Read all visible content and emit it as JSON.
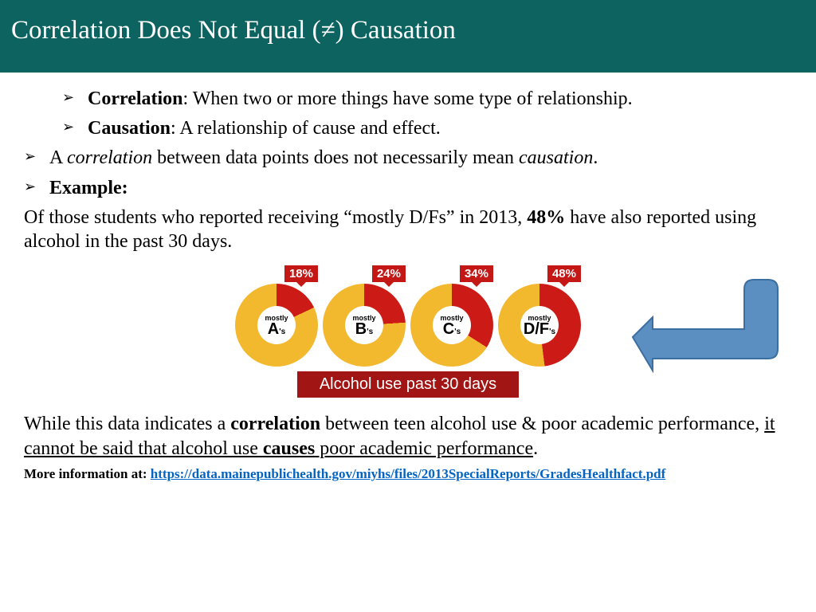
{
  "header": {
    "title": "Correlation Does Not Equal (≠) Causation"
  },
  "bullets": {
    "b1_term": "Correlation",
    "b1_rest": ": When two or more things have some type of relationship.",
    "b2_term": "Causation",
    "b2_rest": ": A relationship of cause and effect.",
    "b3_pre": "A ",
    "b3_it1": "correlation",
    "b3_mid": " between data points does not necessarily mean ",
    "b3_it2": "causation",
    "b3_end": ".",
    "b4": "Example:"
  },
  "body": {
    "p1_a": "Of those students who reported receiving “mostly D/Fs” in 2013, ",
    "p1_pct": "48%",
    "p1_b": " have also reported using alcohol in the past 30 days.",
    "p2_a": "While this data indicates a ",
    "p2_b1": "correlation",
    "p2_c": " between teen alcohol use & poor academic performance, ",
    "p2_u1": "it cannot be said that alcohol use ",
    "p2_u2": "causes",
    "p2_u3": " poor academic performance",
    "p2_end": "."
  },
  "chart": {
    "type": "donut-row",
    "donut_base_color": "#f2b82e",
    "donut_slice_color": "#cc1b17",
    "tag_bg": "#c41817",
    "caption_bg": "#a11515",
    "caption": "Alcohol use past 30 days",
    "items": [
      {
        "label_top": "mostly",
        "grade": "A",
        "pct_label": "18%",
        "pct": 18
      },
      {
        "label_top": "mostly",
        "grade": "B",
        "pct_label": "24%",
        "pct": 24
      },
      {
        "label_top": "mostly",
        "grade": "C",
        "pct_label": "34%",
        "pct": 34
      },
      {
        "label_top": "mostly",
        "grade": "D/F",
        "pct_label": "48%",
        "pct": 48
      }
    ]
  },
  "arrow": {
    "fill": "#5b8ec1",
    "stroke": "#3b6ea1"
  },
  "moreinfo": {
    "label": "More information at: ",
    "url": "https://data.mainepublichealth.gov/miyhs/files/2013SpecialReports/GradesHealthfact.pdf"
  }
}
